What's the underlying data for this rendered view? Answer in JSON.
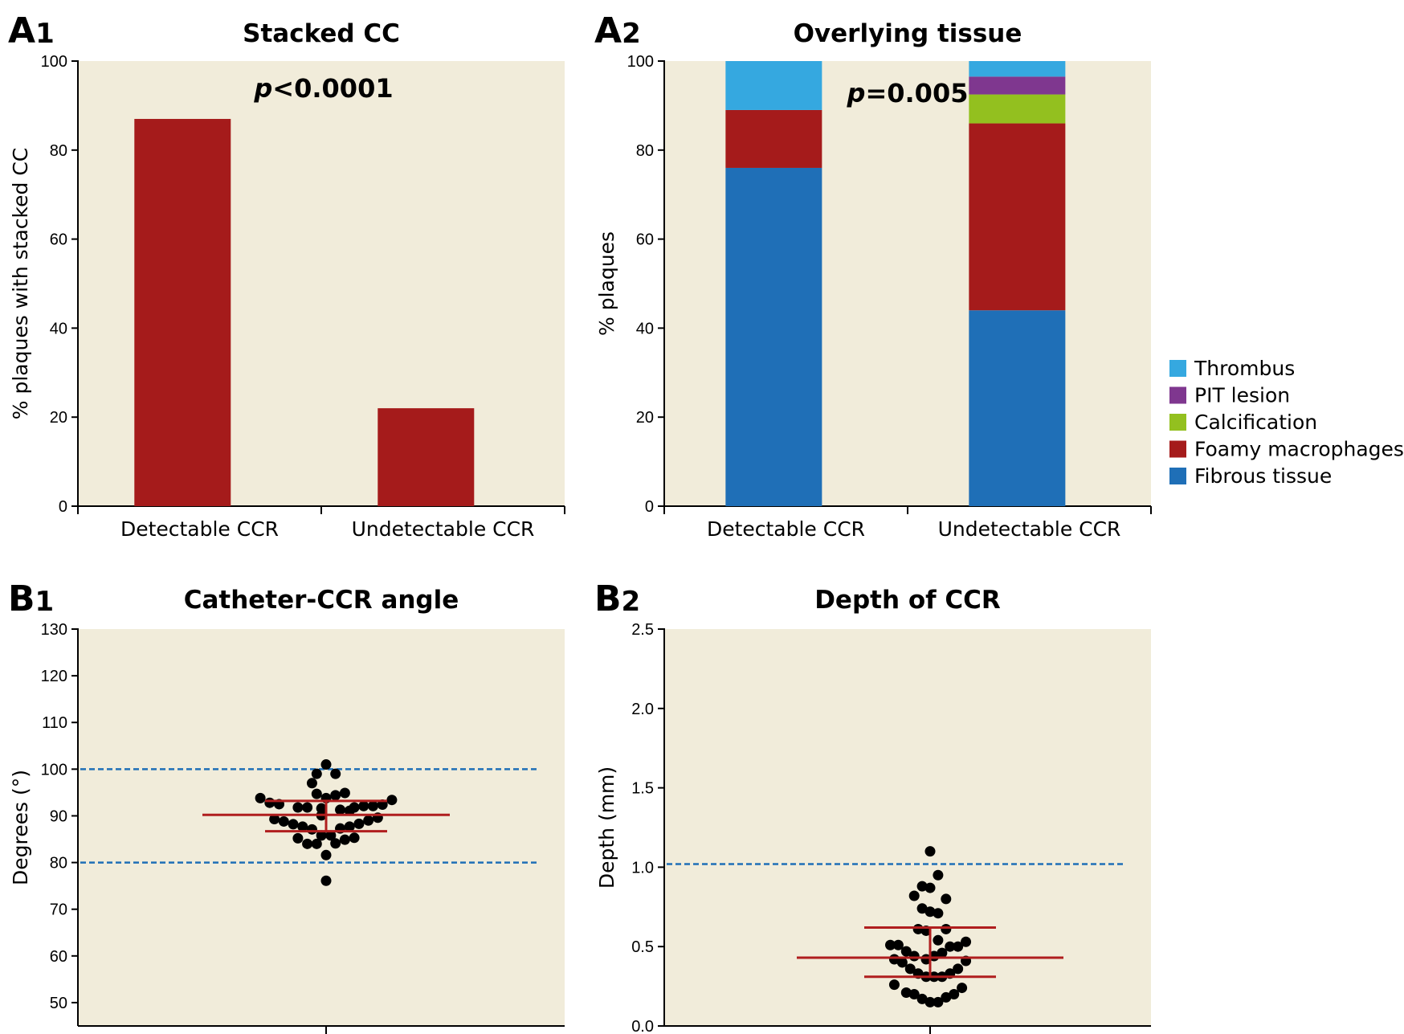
{
  "colors": {
    "plot_bg": "#f1ecda",
    "bar_red": "#a51b1b",
    "thrombus": "#35a8e0",
    "pit_lesion": "#7f378f",
    "calcification": "#93c01f",
    "foamy_macrophages": "#a51b1b",
    "fibrous_tissue": "#1f6fb7",
    "dashed_line": "#1f6fb7",
    "errbar": "#b01e1e",
    "dots": "#000000"
  },
  "chart_data": [
    {
      "id": "A1",
      "panel_label": "A",
      "panel_sub": "1",
      "type": "bar",
      "title": "Stacked CC",
      "ylabel": "% plaques with stacked CC",
      "xlabel": "",
      "categories": [
        "Detectable CCR",
        "Undetectable CCR"
      ],
      "values": [
        87,
        22
      ],
      "ylim": [
        0,
        100
      ],
      "yticks": [
        0,
        20,
        40,
        60,
        80,
        100
      ],
      "annotation": {
        "p_italic": "p",
        "p_rest": "<0.0001"
      },
      "grid": false
    },
    {
      "id": "A2",
      "panel_label": "A",
      "panel_sub": "2",
      "type": "bar",
      "stacked": true,
      "title": "Overlying tissue",
      "ylabel": "% plaques",
      "xlabel": "",
      "categories": [
        "Detectable CCR",
        "Undetectable CCR"
      ],
      "series": [
        {
          "name": "Fibrous tissue",
          "values": [
            76,
            44
          ]
        },
        {
          "name": "Foamy macrophages",
          "values": [
            13,
            42
          ]
        },
        {
          "name": "Calcification",
          "values": [
            0,
            6.5
          ]
        },
        {
          "name": "PIT lesion",
          "values": [
            0,
            4
          ]
        },
        {
          "name": "Thrombus",
          "values": [
            11,
            3.5
          ]
        }
      ],
      "legend": [
        "Thrombus",
        "PIT lesion",
        "Calcification",
        "Foamy macrophages",
        "Fibrous tissue"
      ],
      "legend_position": "right",
      "ylim": [
        0,
        100
      ],
      "yticks": [
        0,
        20,
        40,
        60,
        80,
        100
      ],
      "annotation": {
        "p_italic": "p",
        "p_rest": "=0.005"
      },
      "grid": false
    },
    {
      "id": "B1",
      "panel_label": "B",
      "panel_sub": "1",
      "type": "scatter",
      "title": "Catheter-CCR angle",
      "ylabel": "Degrees (°)",
      "xlabel": "",
      "ylim": [
        45,
        130
      ],
      "yticks": [
        50,
        60,
        70,
        80,
        90,
        100,
        110,
        120,
        130
      ],
      "reference_lines": [
        100,
        80
      ],
      "mean": 90.2,
      "sd_upper": 93.2,
      "sd_lower": 86.7,
      "points": [
        {
          "xo": 0,
          "y": 101
        },
        {
          "xo": -0.2,
          "y": 99
        },
        {
          "xo": 0.2,
          "y": 99
        },
        {
          "xo": -0.3,
          "y": 97
        },
        {
          "xo": -0.2,
          "y": 94.7
        },
        {
          "xo": 0.2,
          "y": 94.4
        },
        {
          "xo": 0.4,
          "y": 94.9
        },
        {
          "xo": -1.4,
          "y": 93.8
        },
        {
          "xo": 0,
          "y": 93.8
        },
        {
          "xo": 1.4,
          "y": 93.4
        },
        {
          "xo": -1.2,
          "y": 92.8
        },
        {
          "xo": -1.0,
          "y": 92.5
        },
        {
          "xo": 1.2,
          "y": 92.4
        },
        {
          "xo": -0.6,
          "y": 91.8
        },
        {
          "xo": -0.4,
          "y": 91.8
        },
        {
          "xo": 0.6,
          "y": 91.8
        },
        {
          "xo": 0.8,
          "y": 92.1
        },
        {
          "xo": 1.0,
          "y": 92.1
        },
        {
          "xo": -0.1,
          "y": 91.6
        },
        {
          "xo": 0.3,
          "y": 91.3
        },
        {
          "xo": 0.5,
          "y": 91.1
        },
        {
          "xo": -0.1,
          "y": 90.1
        },
        {
          "xo": 1.1,
          "y": 89.6
        },
        {
          "xo": -1.1,
          "y": 89.3
        },
        {
          "xo": -0.9,
          "y": 88.8
        },
        {
          "xo": 0.9,
          "y": 89.0
        },
        {
          "xo": -0.7,
          "y": 88.2
        },
        {
          "xo": -0.5,
          "y": 87.7
        },
        {
          "xo": -0.3,
          "y": 87.1
        },
        {
          "xo": 0.3,
          "y": 87.3
        },
        {
          "xo": 0.5,
          "y": 87.7
        },
        {
          "xo": 0.7,
          "y": 88.3
        },
        {
          "xo": -0.1,
          "y": 85.8
        },
        {
          "xo": 0.1,
          "y": 85.8
        },
        {
          "xo": -0.6,
          "y": 85.2
        },
        {
          "xo": 0.4,
          "y": 84.9
        },
        {
          "xo": 0.6,
          "y": 85.3
        },
        {
          "xo": -0.4,
          "y": 84.0
        },
        {
          "xo": -0.2,
          "y": 84.0
        },
        {
          "xo": 0.2,
          "y": 84.1
        },
        {
          "xo": 0,
          "y": 81.6
        },
        {
          "xo": 0,
          "y": 76.1
        }
      ],
      "grid": false
    },
    {
      "id": "B2",
      "panel_label": "B",
      "panel_sub": "2",
      "type": "scatter",
      "title": "Depth of CCR",
      "ylabel": "Depth (mm)",
      "xlabel": "",
      "ylim": [
        0,
        2.5
      ],
      "yticks": [
        0.0,
        0.5,
        1.0,
        1.5,
        2.0,
        2.5
      ],
      "ytick_labels": [
        "0.0",
        "0.5",
        "1.0",
        "1.5",
        "2.0",
        "2.5"
      ],
      "reference_lines": [
        1.02
      ],
      "mean": 0.43,
      "sd_upper": 0.62,
      "sd_lower": 0.31,
      "points": [
        {
          "xo": 0,
          "y": 1.1
        },
        {
          "xo": 0.2,
          "y": 0.95
        },
        {
          "xo": -0.2,
          "y": 0.88
        },
        {
          "xo": 0,
          "y": 0.87
        },
        {
          "xo": -0.4,
          "y": 0.82
        },
        {
          "xo": 0.4,
          "y": 0.8
        },
        {
          "xo": -0.2,
          "y": 0.74
        },
        {
          "xo": 0,
          "y": 0.72
        },
        {
          "xo": 0.2,
          "y": 0.71
        },
        {
          "xo": -0.3,
          "y": 0.61
        },
        {
          "xo": -0.1,
          "y": 0.6
        },
        {
          "xo": 0.4,
          "y": 0.61
        },
        {
          "xo": 0.2,
          "y": 0.54
        },
        {
          "xo": 0.9,
          "y": 0.53
        },
        {
          "xo": -1.0,
          "y": 0.51
        },
        {
          "xo": -0.8,
          "y": 0.51
        },
        {
          "xo": 0.5,
          "y": 0.5
        },
        {
          "xo": 0.7,
          "y": 0.5
        },
        {
          "xo": -0.6,
          "y": 0.47
        },
        {
          "xo": 0.3,
          "y": 0.46
        },
        {
          "xo": -0.4,
          "y": 0.44
        },
        {
          "xo": 0.1,
          "y": 0.44
        },
        {
          "xo": -0.9,
          "y": 0.42
        },
        {
          "xo": -0.1,
          "y": 0.42
        },
        {
          "xo": 0.9,
          "y": 0.41
        },
        {
          "xo": -0.7,
          "y": 0.4
        },
        {
          "xo": -0.5,
          "y": 0.36
        },
        {
          "xo": 0.7,
          "y": 0.36
        },
        {
          "xo": 0.5,
          "y": 0.33
        },
        {
          "xo": -0.3,
          "y": 0.33
        },
        {
          "xo": 0.1,
          "y": 0.31
        },
        {
          "xo": -0.1,
          "y": 0.31
        },
        {
          "xo": 0.3,
          "y": 0.31
        },
        {
          "xo": -0.9,
          "y": 0.26
        },
        {
          "xo": 0.8,
          "y": 0.24
        },
        {
          "xo": -0.6,
          "y": 0.21
        },
        {
          "xo": -0.4,
          "y": 0.2
        },
        {
          "xo": 0.6,
          "y": 0.2
        },
        {
          "xo": -0.2,
          "y": 0.17
        },
        {
          "xo": 0.4,
          "y": 0.18
        },
        {
          "xo": 0,
          "y": 0.15
        },
        {
          "xo": 0.2,
          "y": 0.15
        }
      ],
      "grid": false
    }
  ]
}
